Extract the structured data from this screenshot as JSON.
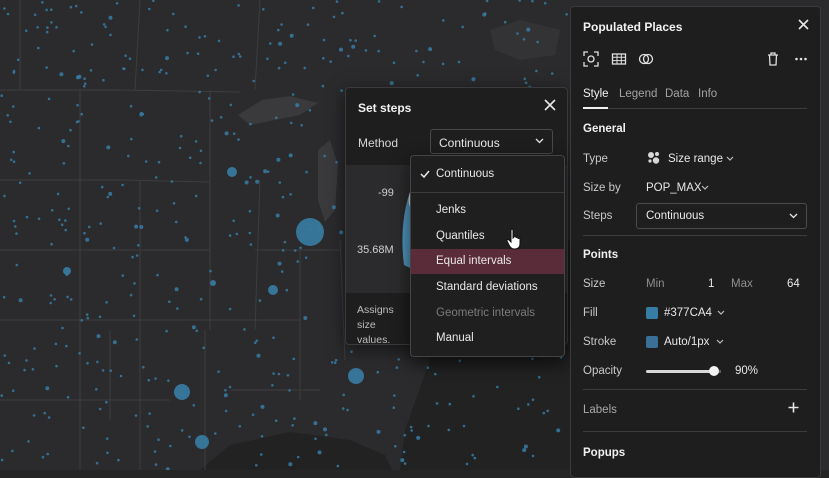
{
  "map": {
    "land_color": "#2c2c2e",
    "water_color": "#212122",
    "border_color": "#3d3d40",
    "point_color": "#377CA4"
  },
  "steps_dialog": {
    "title": "Set steps",
    "method_label": "Method",
    "method_value": "Continuous",
    "min_value": "-99",
    "max_value": "35.68M",
    "description": "Assigns size values."
  },
  "method_dropdown": {
    "selected": "Continuous",
    "options": [
      {
        "label": "Jenks",
        "state": "normal"
      },
      {
        "label": "Quantiles",
        "state": "normal"
      },
      {
        "label": "Equal intervals",
        "state": "hover"
      },
      {
        "label": "Standard deviations",
        "state": "normal"
      },
      {
        "label": "Geometric intervals",
        "state": "disabled"
      },
      {
        "label": "Manual",
        "state": "normal"
      }
    ],
    "hover_color": "#5a2b38"
  },
  "panel": {
    "title": "Populated Places",
    "tools": [
      "zoom-to-layer-icon",
      "table-icon",
      "filter-icon",
      "delete-icon",
      "more-icon"
    ],
    "tabs": [
      "Style",
      "Legend",
      "Data",
      "Info"
    ],
    "active_tab": "Style",
    "general": {
      "heading": "General",
      "type_label": "Type",
      "type_value": "Size range",
      "size_by_label": "Size by",
      "size_by_value": "POP_MAX",
      "steps_label": "Steps",
      "steps_value": "Continuous"
    },
    "points": {
      "heading": "Points",
      "size_label": "Size",
      "min_label": "Min",
      "min_value": "1",
      "max_label": "Max",
      "max_value": "64",
      "fill_label": "Fill",
      "fill_value": "#377CA4",
      "fill_color": "#377CA4",
      "stroke_label": "Stroke",
      "stroke_value": "Auto/1px",
      "stroke_color": "#3a6f96",
      "opacity_label": "Opacity",
      "opacity_value": "90%",
      "opacity_level": 0.9
    },
    "labels_heading": "Labels",
    "popups_heading": "Popups"
  }
}
